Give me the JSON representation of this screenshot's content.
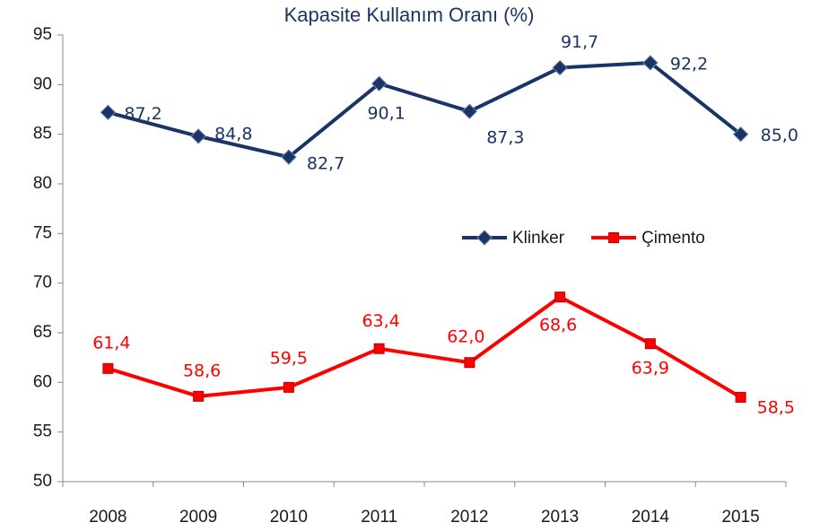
{
  "chart_data": {
    "type": "line",
    "title": "Kapasite Kullanım Oranı (%)",
    "categories": [
      "2008",
      "2009",
      "2010",
      "2011",
      "2012",
      "2013",
      "2014",
      "2015"
    ],
    "series": [
      {
        "name": "Klinker",
        "color": "#1a3466",
        "marker": "diamond",
        "values": [
          87.2,
          84.8,
          82.7,
          90.1,
          87.3,
          91.7,
          92.2,
          85.0
        ],
        "value_labels": [
          "87,2",
          "84,8",
          "82,7",
          "90,1",
          "87,3",
          "91,7",
          "92,2",
          "85,0"
        ]
      },
      {
        "name": "Çimento",
        "color": "#ff0000",
        "marker": "square",
        "values": [
          61.4,
          58.6,
          59.5,
          63.4,
          62.0,
          68.6,
          63.9,
          58.5
        ],
        "value_labels": [
          "61,4",
          "58,6",
          "59,5",
          "63,4",
          "62,0",
          "68,6",
          "63,9",
          "58,5"
        ]
      }
    ],
    "ylim": [
      50,
      95
    ],
    "yticks": [
      50,
      55,
      60,
      65,
      70,
      75,
      80,
      85,
      90,
      95
    ],
    "legend": "right"
  }
}
